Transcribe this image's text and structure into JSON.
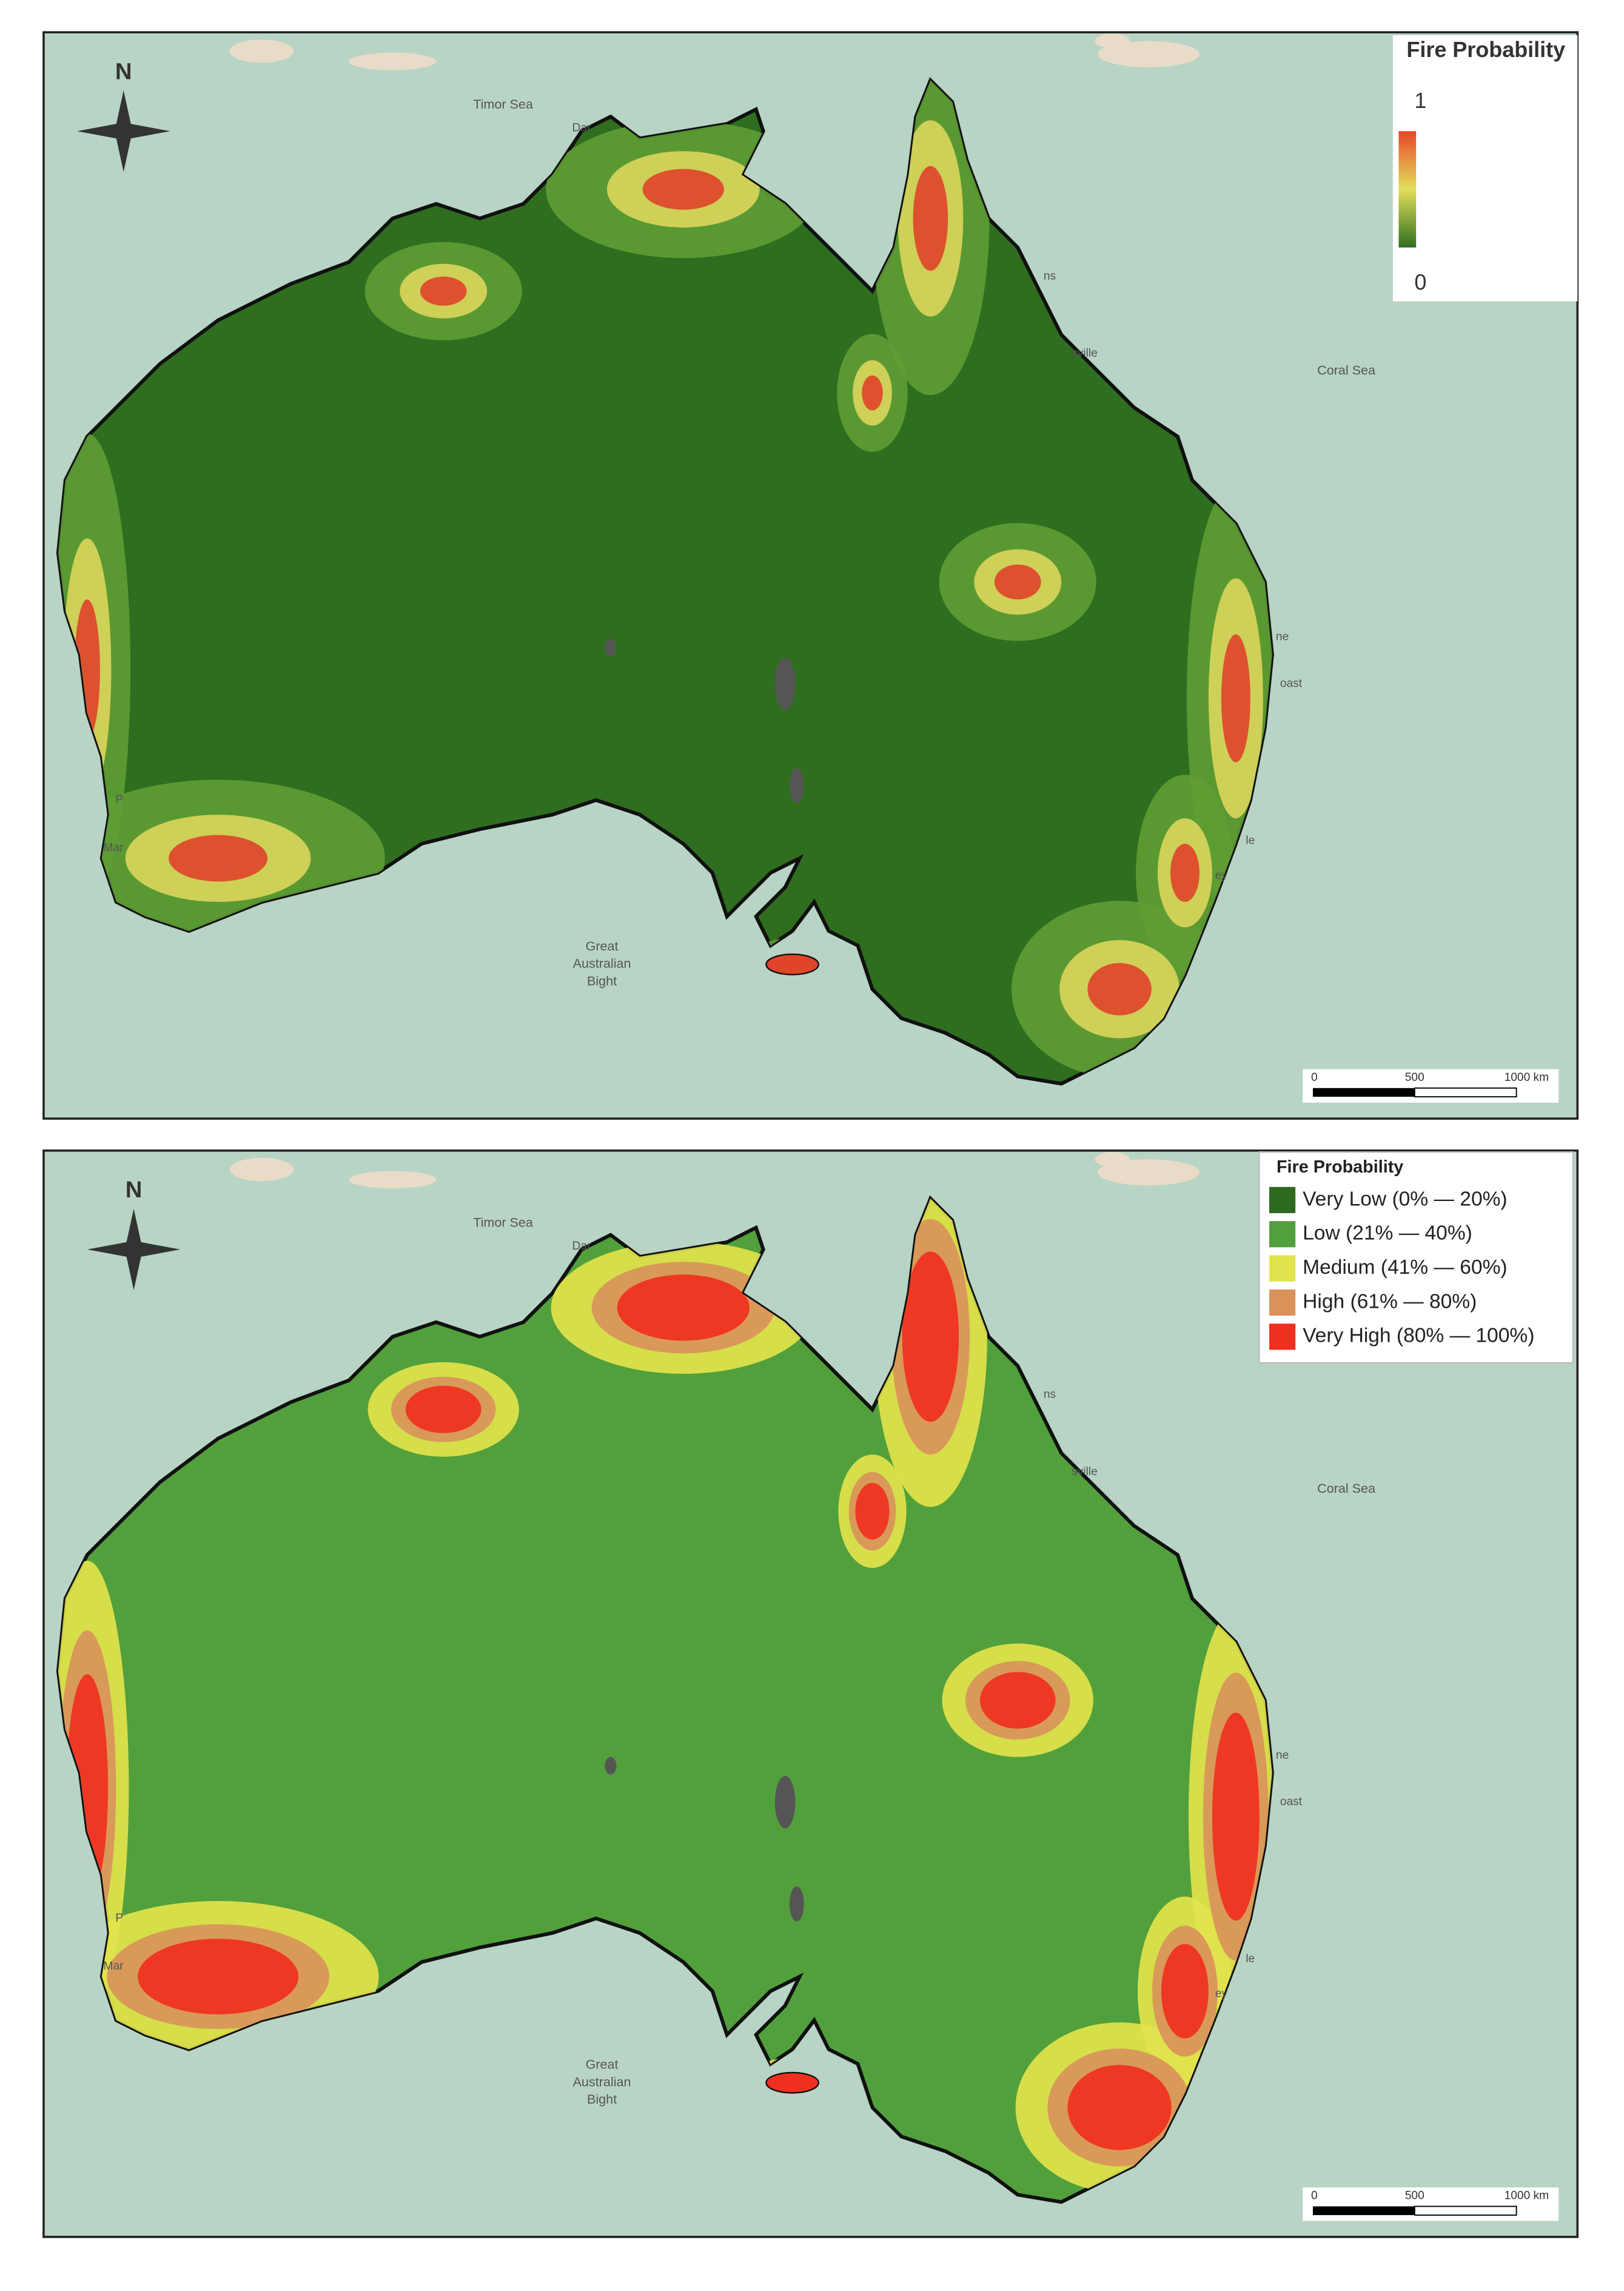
{
  "maps": [
    {
      "north": "N",
      "sea_labels": [
        "Timor Sea",
        "Coral Sea"
      ],
      "bight_label": [
        "Great",
        "Australian",
        "Bight"
      ],
      "place_fragments": [
        "Dar",
        "ns",
        "sville",
        "ne",
        "oast",
        "P",
        "Mar",
        "le",
        "ey"
      ],
      "scale_labels": [
        "0",
        "500",
        "1000 km"
      ],
      "legend": {
        "type": "gradient",
        "title": "Fire Probability",
        "max_label": "1",
        "min_label": "0",
        "colors": [
          "#e8452a",
          "#e3df5a",
          "#2f6e1f"
        ]
      }
    },
    {
      "north": "N",
      "sea_labels": [
        "Timor Sea",
        "Coral Sea"
      ],
      "bight_label": [
        "Great",
        "Australian",
        "Bight"
      ],
      "place_fragments": [
        "Dar",
        "ns",
        "sville",
        "ne",
        "oast",
        "P",
        "Mar",
        "le",
        "ey"
      ],
      "scale_labels": [
        "0",
        "500",
        "1000 km"
      ],
      "legend": {
        "type": "categorical",
        "title": "Fire Probability",
        "items": [
          {
            "label": "Very Low (0% — 20%)",
            "color": "#2e6a1e"
          },
          {
            "label": "Low (21% — 40%)",
            "color": "#52a03c"
          },
          {
            "label": "Medium (41% — 60%)",
            "color": "#e2e34c"
          },
          {
            "label": "High (61% — 80%)",
            "color": "#d9925a"
          },
          {
            "label": "Very High (80% — 100%)",
            "color": "#f0301e"
          }
        ]
      }
    }
  ]
}
